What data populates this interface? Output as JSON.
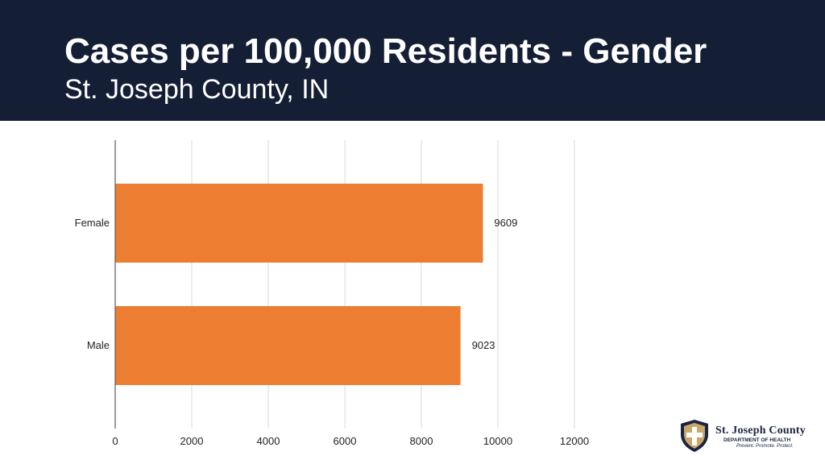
{
  "header": {
    "title": "Cases per 100,000 Residents - Gender",
    "subtitle": "St. Joseph County, IN"
  },
  "colors": {
    "header_bg": "#141e35",
    "bar": "#ed7d31",
    "gridline": "#d9d9d9",
    "axis": "#595959"
  },
  "logo": {
    "icon": "shield-cross-icon",
    "name": "St. Joseph County",
    "dept": "DEPARTMENT OF HEALTH",
    "tagline": "Prevent. Promote. Protect."
  },
  "chart_data": {
    "type": "bar",
    "orientation": "horizontal",
    "categories": [
      "Female",
      "Male"
    ],
    "values": [
      9609,
      9023
    ],
    "x_ticks": [
      0,
      2000,
      4000,
      6000,
      8000,
      10000,
      12000
    ],
    "xlim": [
      0,
      12000
    ],
    "grid": true,
    "legend": "none",
    "title": "",
    "xlabel": "",
    "ylabel": ""
  }
}
